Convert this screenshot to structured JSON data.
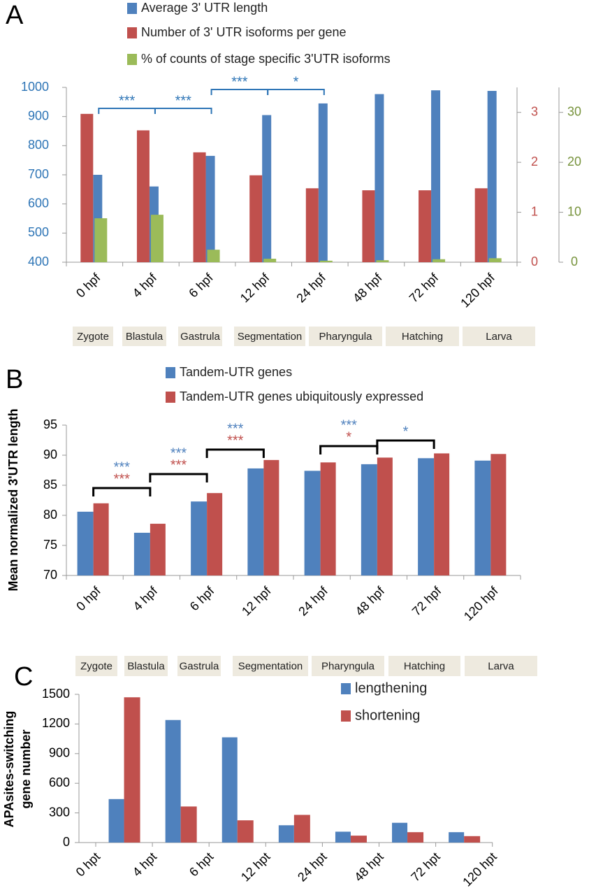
{
  "chart_data": [
    {
      "type": "bar",
      "panel": "A",
      "categories": [
        "0 hpf",
        "4 hpf",
        "6 hpf",
        "12 hpf",
        "24 hpf",
        "48 hpf",
        "72 hpf",
        "120 hpf"
      ],
      "series": [
        {
          "name": "Average 3' UTR length",
          "color": "#4f81bd",
          "values": [
            700,
            660,
            765,
            905,
            945,
            977,
            990,
            988
          ]
        },
        {
          "name": "Number of 3' UTR isoforms per gene",
          "color": "#c0504d",
          "axis": "y2",
          "values": [
            2.97,
            2.64,
            2.2,
            1.74,
            1.48,
            1.44,
            1.44,
            1.48
          ]
        },
        {
          "name": "% of counts of stage specific 3'UTR isoforms",
          "color": "#9bbb59",
          "axis": "y3",
          "values": [
            8.8,
            9.5,
            2.5,
            0.7,
            0.3,
            0.4,
            0.6,
            0.8
          ]
        }
      ],
      "ylim": [
        400,
        1000
      ],
      "yticks": [
        400,
        500,
        600,
        700,
        800,
        900,
        1000
      ],
      "y2lim": [
        0,
        3.5
      ],
      "y2ticks": [
        0,
        1,
        2,
        3
      ],
      "y3lim": [
        0,
        35
      ],
      "y3ticks": [
        0,
        10,
        20,
        30
      ],
      "axis_colors": {
        "y": "#2e75b6",
        "y2": "#c0504d",
        "y3": "#77933c"
      },
      "stages": [
        "Zygote",
        "Blastula",
        "Gastrula",
        "Segmentation",
        "Pharyngula",
        "Hatching",
        "Larva"
      ],
      "annotations": [
        {
          "between": [
            "0 hpf",
            "4 hpf"
          ],
          "color": "#2e75b6",
          "labels": [
            {
              "text": "***",
              "color": "#2e75b6"
            }
          ]
        },
        {
          "between": [
            "4 hpf",
            "6 hpf"
          ],
          "color": "#2e75b6",
          "labels": [
            {
              "text": "***",
              "color": "#2e75b6"
            }
          ]
        },
        {
          "between": [
            "6 hpf",
            "12 hpf"
          ],
          "color": "#2e75b6",
          "labels": [
            {
              "text": "***",
              "color": "#2e75b6"
            }
          ]
        },
        {
          "between": [
            "12 hpf",
            "24 hpf"
          ],
          "color": "#2e75b6",
          "labels": [
            {
              "text": "*",
              "color": "#2e75b6"
            }
          ]
        }
      ]
    },
    {
      "type": "bar",
      "panel": "B",
      "ylabel": "Mean normalized 3'UTR length",
      "categories": [
        "0 hpf",
        "4 hpf",
        "6 hpf",
        "12 hpf",
        "24 hpf",
        "48 hpf",
        "72 hpf",
        "120 hpf"
      ],
      "series": [
        {
          "name": "Tandem-UTR genes",
          "color": "#4f81bd",
          "values": [
            80.6,
            77.1,
            82.3,
            87.8,
            87.4,
            88.5,
            89.5,
            89.1
          ]
        },
        {
          "name": "Tandem-UTR genes ubiquitously expressed",
          "color": "#c0504d",
          "values": [
            82.0,
            78.6,
            83.7,
            89.2,
            88.8,
            89.6,
            90.3,
            90.2
          ]
        }
      ],
      "ylim": [
        70,
        95
      ],
      "yticks": [
        70,
        75,
        80,
        85,
        90,
        95
      ],
      "stages": [
        "Zygote",
        "Blastula",
        "Gastrula",
        "Segmentation",
        "Pharyngula",
        "Hatching",
        "Larva"
      ],
      "annotations": [
        {
          "between": [
            "0 hpf",
            "4 hpf"
          ],
          "color": "#000000",
          "labels": [
            {
              "text": "***",
              "color": "#4f81bd"
            },
            {
              "text": "***",
              "color": "#c0504d"
            }
          ]
        },
        {
          "between": [
            "4 hpf",
            "6 hpf"
          ],
          "color": "#000000",
          "labels": [
            {
              "text": "***",
              "color": "#4f81bd"
            },
            {
              "text": "***",
              "color": "#c0504d"
            }
          ]
        },
        {
          "between": [
            "6 hpf",
            "12 hpf"
          ],
          "color": "#000000",
          "labels": [
            {
              "text": "***",
              "color": "#4f81bd"
            },
            {
              "text": "***",
              "color": "#c0504d"
            }
          ]
        },
        {
          "between": [
            "24 hpf",
            "48 hpf"
          ],
          "color": "#000000",
          "labels": [
            {
              "text": "***",
              "color": "#4f81bd"
            },
            {
              "text": "*",
              "color": "#c0504d"
            }
          ]
        },
        {
          "between": [
            "48 hpf",
            "72 hpf"
          ],
          "color": "#000000",
          "labels": [
            {
              "text": "*",
              "color": "#4f81bd"
            }
          ]
        }
      ]
    },
    {
      "type": "bar",
      "panel": "C",
      "ylabel": [
        "APAsites-switching",
        "gene  number"
      ],
      "bin_edges": [
        "0 hpt",
        "4 hpt",
        "6 hpt",
        "12 hpt",
        "24 hpt",
        "48 hpt",
        "72 hpt",
        "120 hpt"
      ],
      "series": [
        {
          "name": "lengthening",
          "color": "#4f81bd",
          "values": [
            440,
            1240,
            1065,
            175,
            110,
            200,
            105
          ]
        },
        {
          "name": "shortening",
          "color": "#c0504d",
          "values": [
            1470,
            365,
            225,
            280,
            70,
            105,
            65
          ]
        }
      ],
      "ylim": [
        0,
        1500
      ],
      "yticks": [
        0,
        300,
        600,
        900,
        1200,
        1500
      ]
    }
  ]
}
